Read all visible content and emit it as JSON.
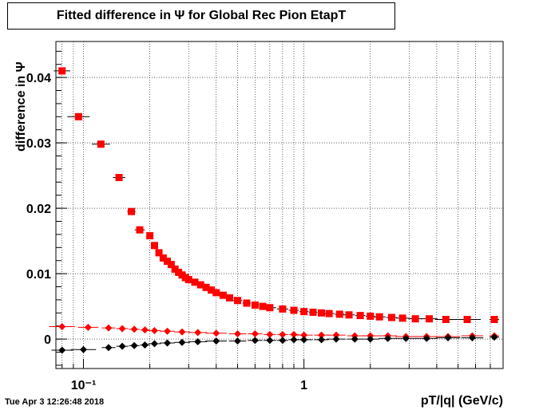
{
  "title": "Fitted difference in  Ψ  for Global Rec Pion EtapT",
  "timestamp": "Tue Apr  3 12:26:48 2018",
  "chart_data": {
    "type": "scatter",
    "title": "Fitted difference in  Ψ  for Global Rec Pion EtapT",
    "xlabel": "pT/|q| (GeV/c)",
    "ylabel": "difference in  Ψ",
    "xscale": "log",
    "xlim": [
      0.075,
      8.0
    ],
    "ylim": [
      -0.0045,
      0.0455
    ],
    "grid": true,
    "x_tick_labels": [
      "10⁻¹",
      "1"
    ],
    "y_ticks": [
      0,
      0.01,
      0.02,
      0.03,
      0.04
    ],
    "y_tick_labels": [
      "0",
      "0.01",
      "0.02",
      "0.03",
      "0.04"
    ],
    "series": [
      {
        "marker": "square",
        "color": "#ff0000",
        "x": [
          0.08,
          0.095,
          0.12,
          0.145,
          0.165,
          0.18,
          0.2,
          0.21,
          0.22,
          0.23,
          0.24,
          0.25,
          0.26,
          0.27,
          0.28,
          0.29,
          0.3,
          0.32,
          0.34,
          0.36,
          0.38,
          0.4,
          0.43,
          0.46,
          0.5,
          0.55,
          0.6,
          0.65,
          0.7,
          0.8,
          0.9,
          1.0,
          1.1,
          1.2,
          1.3,
          1.45,
          1.6,
          1.8,
          2.0,
          2.2,
          2.5,
          2.8,
          3.2,
          3.7,
          4.4,
          5.5,
          7.3
        ],
        "y": [
          0.041,
          0.034,
          0.0298,
          0.0247,
          0.0195,
          0.0167,
          0.0158,
          0.0143,
          0.0132,
          0.0124,
          0.0119,
          0.0114,
          0.0107,
          0.0102,
          0.0098,
          0.0094,
          0.0091,
          0.0087,
          0.0083,
          0.0079,
          0.0075,
          0.0071,
          0.0067,
          0.0063,
          0.0059,
          0.0055,
          0.0052,
          0.005,
          0.0048,
          0.0046,
          0.0044,
          0.0042,
          0.0041,
          0.004,
          0.0039,
          0.0038,
          0.0037,
          0.0036,
          0.0035,
          0.0034,
          0.0033,
          0.0032,
          0.0031,
          0.0031,
          0.003,
          0.003,
          0.003
        ]
      },
      {
        "marker": "diamond",
        "color": "#ff0000",
        "x": [
          0.08,
          0.105,
          0.13,
          0.15,
          0.17,
          0.19,
          0.21,
          0.24,
          0.28,
          0.33,
          0.4,
          0.5,
          0.6,
          0.7,
          0.8,
          0.9,
          1.0,
          1.2,
          1.4,
          1.7,
          2.0,
          2.4,
          2.9,
          3.6,
          4.5,
          5.8,
          7.3
        ],
        "y": [
          0.0019,
          0.0018,
          0.0017,
          0.0016,
          0.0015,
          0.0014,
          0.0013,
          0.0012,
          0.0011,
          0.001,
          0.0009,
          0.0008,
          0.0008,
          0.0007,
          0.0007,
          0.0007,
          0.0006,
          0.0006,
          0.0006,
          0.0005,
          0.0005,
          0.0005,
          0.0004,
          0.0004,
          0.0004,
          0.0005,
          0.0005
        ]
      },
      {
        "marker": "diamond",
        "color": "#000000",
        "x": [
          0.08,
          0.1,
          0.13,
          0.15,
          0.17,
          0.19,
          0.21,
          0.24,
          0.28,
          0.33,
          0.4,
          0.5,
          0.6,
          0.7,
          0.8,
          0.9,
          1.0,
          1.2,
          1.4,
          1.7,
          2.0,
          2.4,
          2.9,
          3.6,
          4.5,
          5.8,
          7.3
        ],
        "y": [
          -0.0017,
          -0.0016,
          -0.0013,
          -0.0011,
          -0.001,
          -0.0009,
          -0.0007,
          -0.0006,
          -0.0005,
          -0.0004,
          -0.0003,
          -0.0003,
          -0.0002,
          -0.0002,
          -0.0002,
          -0.0001,
          -0.0001,
          -0.0001,
          0.0,
          0.0,
          0.0,
          0.0001,
          0.0001,
          0.0001,
          0.0002,
          0.0002,
          0.0003
        ]
      }
    ]
  }
}
